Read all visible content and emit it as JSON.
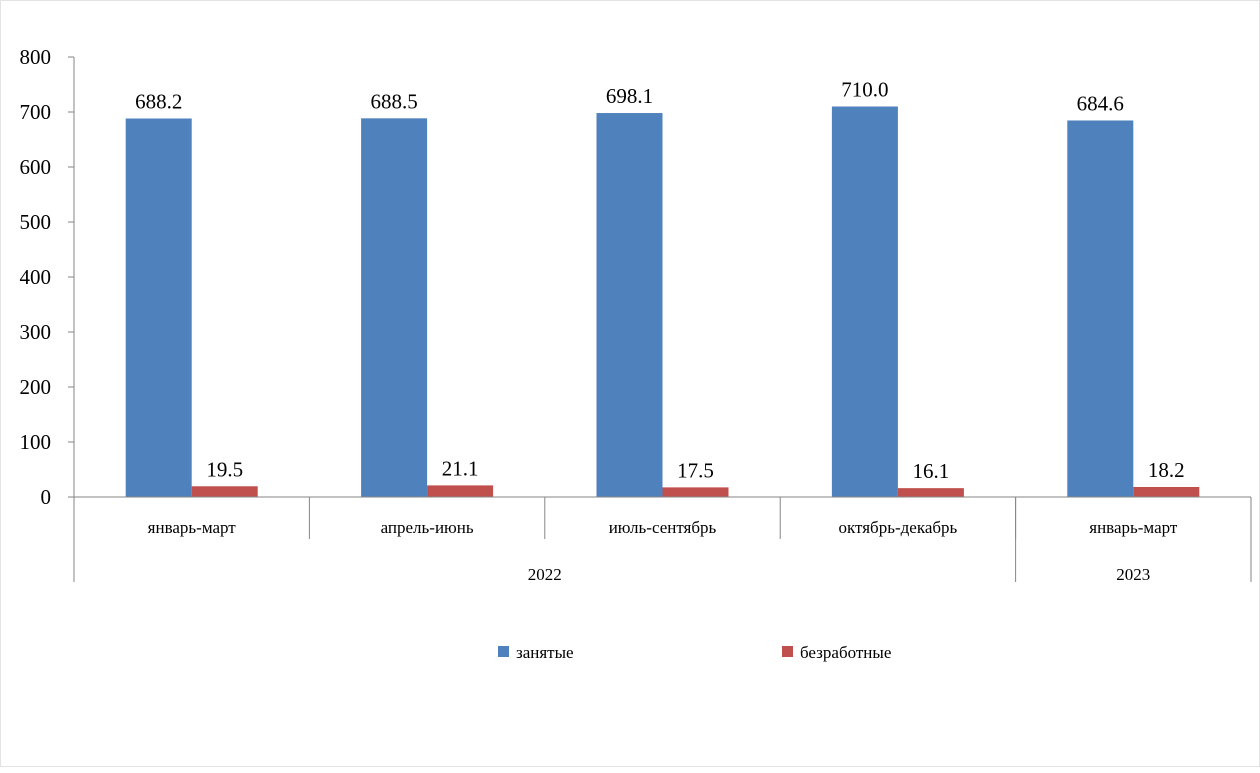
{
  "chart_data": {
    "type": "bar",
    "categories": [
      "январь-март",
      "апрель-июнь",
      "июль-сентябрь",
      "октябрь-декабрь",
      "январь-март"
    ],
    "groups": [
      {
        "label": "2022",
        "span": 4
      },
      {
        "label": "2023",
        "span": 1
      }
    ],
    "series": [
      {
        "name": "занятые",
        "color": "#4F81BD",
        "values": [
          688.2,
          688.5,
          698.1,
          710.0,
          684.6
        ],
        "labels": [
          "688.2",
          "688.5",
          "698.1",
          "710.0",
          "684.6"
        ]
      },
      {
        "name": "безработные",
        "color": "#C0504D",
        "values": [
          19.5,
          21.1,
          17.5,
          16.1,
          18.2
        ],
        "labels": [
          "19.5",
          "21.1",
          "17.5",
          "16.1",
          "18.2"
        ]
      }
    ],
    "ylim": [
      0,
      800
    ],
    "yticks": [
      "0",
      "100",
      "200",
      "300",
      "400",
      "500",
      "600",
      "700",
      "800"
    ],
    "grid": false,
    "legend": "bottom"
  }
}
